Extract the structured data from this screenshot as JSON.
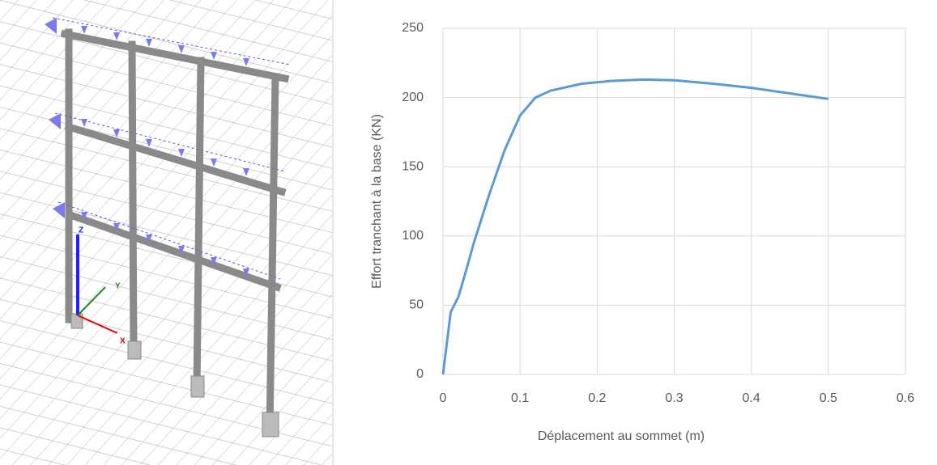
{
  "model_view": {
    "axis_labels": {
      "x": "X",
      "y": "Y",
      "z": "Z"
    }
  },
  "chart_data": {
    "type": "line",
    "xlabel": "Déplacement au sommet (m)",
    "ylabel": "Effort tranchant à la base (KN)",
    "x": [
      0,
      0.01,
      0.02,
      0.03,
      0.04,
      0.06,
      0.08,
      0.1,
      0.12,
      0.14,
      0.18,
      0.22,
      0.26,
      0.3,
      0.35,
      0.4,
      0.45,
      0.5
    ],
    "values": [
      0,
      45,
      56,
      75,
      95,
      130,
      162,
      187,
      200,
      205,
      210,
      212,
      213,
      212.5,
      210,
      207,
      203,
      199
    ],
    "color": "#5b9bd5",
    "xlim": [
      0,
      0.6
    ],
    "xticks": [
      0,
      0.1,
      0.2,
      0.3,
      0.4,
      0.5,
      0.6
    ],
    "ylim": [
      0,
      250
    ],
    "yticks": [
      0,
      50,
      100,
      150,
      200,
      250
    ],
    "grid": true
  }
}
